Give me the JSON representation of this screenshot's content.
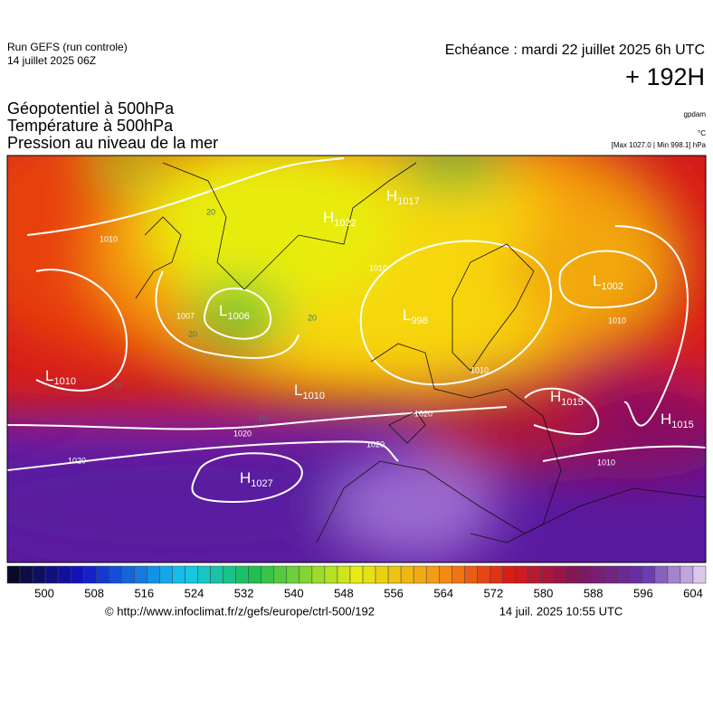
{
  "header": {
    "run": "Run GEFS (run controle)",
    "run_date": "14 juillet 2025 06Z",
    "forecast": "Echéance : mardi 22 juillet 2025 6h UTC",
    "lead": "+ 192H"
  },
  "legend": {
    "lines": [
      "Géopotentiel à 500hPa",
      "Température à 500hPa",
      "Pression au niveau de la mer"
    ],
    "units": [
      "gpdam",
      "°C",
      "[Max 1027.0 | Min 998.1] hPa"
    ]
  },
  "map": {
    "centers": [
      {
        "letter": "L",
        "value": 1006
      },
      {
        "letter": "H",
        "value": 1017
      },
      {
        "letter": "H",
        "value": 1022
      },
      {
        "letter": "H",
        "value": 1027
      },
      {
        "letter": "L",
        "value": 1010
      },
      {
        "letter": "L",
        "value": 1010
      },
      {
        "letter": "L",
        "value": 1002
      },
      {
        "letter": "L",
        "value": 998
      },
      {
        "letter": "H",
        "value": 1015
      },
      {
        "letter": "H",
        "value": 1015
      }
    ],
    "contour_labels": [
      1010,
      1010,
      1007,
      1020,
      1020,
      1020,
      1020,
      1010,
      1010,
      1010,
      20,
      20,
      20,
      10,
      10
    ]
  },
  "colorbar": {
    "ticks": [
      500,
      508,
      516,
      524,
      532,
      540,
      548,
      556,
      564,
      572,
      580,
      588,
      596,
      604
    ]
  },
  "footer": {
    "source": "© http://www.infoclimat.fr/z/gefs/europe/ctrl-500/192",
    "generated": "14 juil. 2025 10:55 UTC"
  }
}
